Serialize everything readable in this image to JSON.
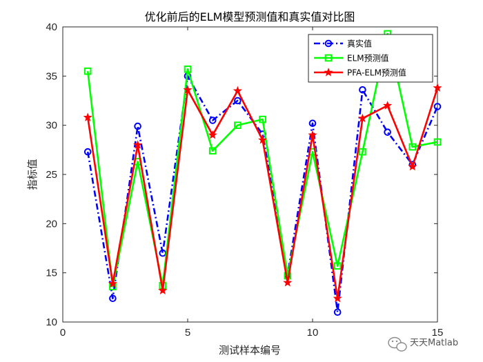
{
  "chart_data": {
    "type": "line",
    "title": "优化前后的ELM模型预测值和真实值对比图",
    "xlabel": "测试样本编号",
    "ylabel": "指标值",
    "xlim": [
      0,
      15
    ],
    "ylim": [
      10,
      40
    ],
    "xticks": [
      0,
      5,
      10,
      15
    ],
    "yticks": [
      10,
      15,
      20,
      25,
      30,
      35,
      40
    ],
    "grid": false,
    "legend_position": "top-right",
    "x": [
      1,
      2,
      3,
      4,
      5,
      6,
      7,
      8,
      9,
      10,
      11,
      12,
      13,
      14,
      15
    ],
    "series": [
      {
        "name": "真实值",
        "color": "#0000ff",
        "line_style": "dash-dot",
        "marker": "circle",
        "values": [
          27.3,
          12.4,
          29.9,
          17.0,
          35.0,
          30.5,
          32.5,
          29.1,
          14.8,
          30.2,
          11.0,
          33.6,
          29.3,
          26.0,
          31.9
        ]
      },
      {
        "name": "ELM预测值",
        "color": "#00ff00",
        "line_style": "solid",
        "marker": "square",
        "values": [
          35.5,
          13.6,
          26.3,
          13.7,
          35.7,
          27.4,
          30.0,
          30.6,
          14.7,
          27.3,
          15.7,
          27.3,
          39.3,
          27.8,
          28.3
        ]
      },
      {
        "name": "PFA-ELM预测值",
        "color": "#ff0000",
        "line_style": "solid",
        "marker": "star",
        "values": [
          30.8,
          13.9,
          28.0,
          13.2,
          33.6,
          29.0,
          33.5,
          28.5,
          14.0,
          29.0,
          12.4,
          30.7,
          32.0,
          25.8,
          33.8
        ]
      }
    ]
  },
  "watermark": {
    "text": "天天Matlab",
    "icon": "wechat-icon"
  }
}
